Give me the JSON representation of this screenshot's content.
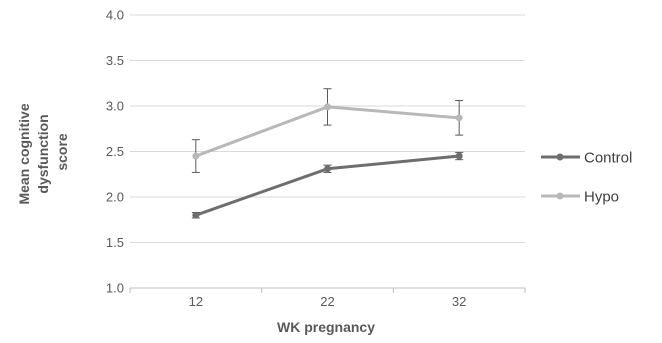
{
  "chart_data": {
    "type": "line",
    "title": "",
    "xlabel": "WK pregnancy",
    "ylabel_lines": [
      "Mean cognitive",
      "dysfunction",
      "score"
    ],
    "categories": [
      "12",
      "22",
      "32"
    ],
    "ylim": [
      1.0,
      4.0
    ],
    "yticks": [
      "1.0",
      "1.5",
      "2.0",
      "2.5",
      "3.0",
      "3.5",
      "4.0"
    ],
    "grid": "horizontal",
    "legend_position": "right",
    "series": [
      {
        "name": "Control",
        "color": "#6e6e6e",
        "values": [
          1.8,
          2.31,
          2.45
        ],
        "error": [
          0.03,
          0.04,
          0.04
        ]
      },
      {
        "name": "Hypo",
        "color": "#b8b8b8",
        "values": [
          2.45,
          2.99,
          2.87
        ],
        "error": [
          0.18,
          0.2,
          0.19
        ]
      }
    ]
  }
}
